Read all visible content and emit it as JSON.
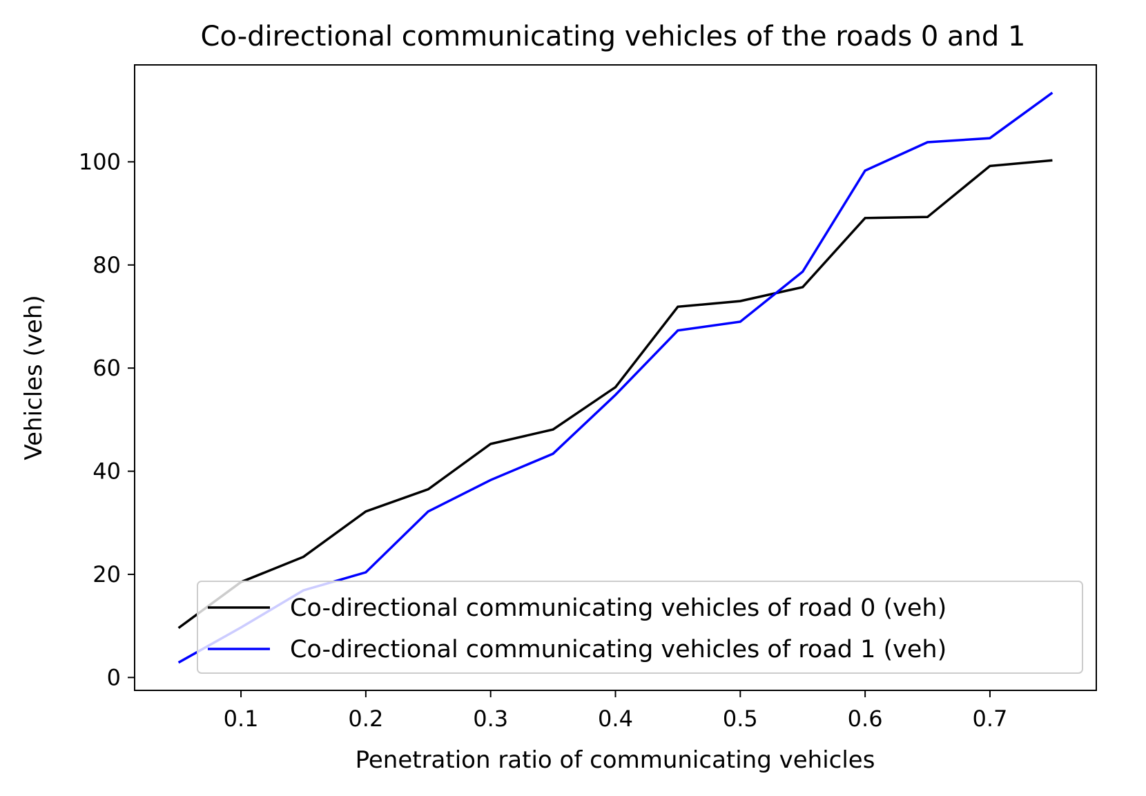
{
  "chart_data": {
    "type": "line",
    "title": "Co-directional communicating vehicles of the roads 0 and 1",
    "xlabel": "Penetration ratio of communicating vehicles",
    "ylabel": "Vehicles (veh)",
    "x": [
      0.05,
      0.1,
      0.15,
      0.2,
      0.25,
      0.3,
      0.35,
      0.4,
      0.45,
      0.5,
      0.55,
      0.6,
      0.65,
      0.7,
      0.75
    ],
    "xlim": [
      0.0148,
      0.7852
    ],
    "ylim": [
      -2.5,
      118.8
    ],
    "xticks": [
      0.1,
      0.2,
      0.3,
      0.4,
      0.5,
      0.6,
      0.7
    ],
    "xtick_labels": [
      "0.1",
      "0.2",
      "0.3",
      "0.4",
      "0.5",
      "0.6",
      "0.7"
    ],
    "yticks": [
      0,
      20,
      40,
      60,
      80,
      100
    ],
    "ytick_labels": [
      "0",
      "20",
      "40",
      "60",
      "80",
      "100"
    ],
    "grid": false,
    "legend_position": "lower-right",
    "series": [
      {
        "name": "Co-directional communicating vehicles of road 0 (veh)",
        "color": "#000000",
        "values": [
          9.6,
          18.5,
          23.4,
          32.2,
          36.5,
          45.3,
          48.1,
          56.3,
          71.9,
          73.0,
          75.7,
          89.1,
          89.3,
          99.2,
          100.3
        ]
      },
      {
        "name": "Co-directional communicating vehicles of road 1 (veh)",
        "color": "#0000ff",
        "values": [
          2.9,
          9.7,
          16.9,
          20.4,
          32.2,
          38.3,
          43.4,
          54.8,
          67.3,
          69.0,
          78.7,
          98.3,
          103.8,
          104.6,
          113.4
        ]
      }
    ]
  }
}
